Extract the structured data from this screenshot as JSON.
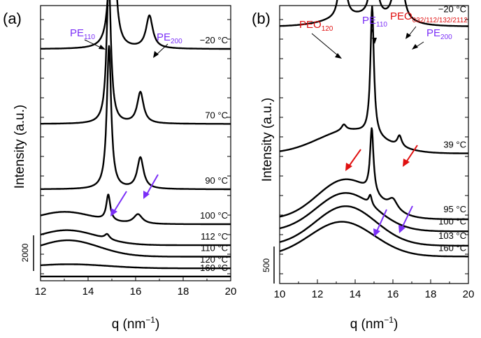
{
  "chart_data": [
    {
      "type": "line",
      "panel_label": "(a)",
      "xlabel_main": "q (nm",
      "xlabel_sup": "−1",
      "xlabel_end": ")",
      "ylabel": "Intensity (a.u.)",
      "xlim": [
        12,
        20
      ],
      "xticks": [
        12,
        14,
        16,
        18,
        20
      ],
      "scale_bar_label": "2000",
      "annotations": [
        {
          "base": "PE",
          "sub": "110",
          "color": "#7b2ff7"
        },
        {
          "base": "PE",
          "sub": "200",
          "color": "#7b2ff7"
        }
      ],
      "series": [
        {
          "name": "−20 °C",
          "offset": 830,
          "base": 0,
          "slope": 0,
          "peaks": [
            {
              "q": 15.02,
              "h": 690,
              "w": 0.12
            },
            {
              "q": 16.58,
              "h": 120,
              "w": 0.17
            }
          ]
        },
        {
          "name": "70 °C",
          "offset": 555,
          "base": 0,
          "slope": 0,
          "peaks": [
            {
              "q": 14.87,
              "h": 525,
              "w": 0.11
            },
            {
              "q": 16.2,
              "h": 115,
              "w": 0.16
            }
          ]
        },
        {
          "name": "90 °C",
          "offset": 315,
          "base": 0,
          "slope": 0,
          "peaks": [
            {
              "q": 14.88,
              "h": 525,
              "w": 0.11
            },
            {
              "q": 16.2,
              "h": 115,
              "w": 0.16
            }
          ]
        },
        {
          "name": "100 °C",
          "offset": 187,
          "base": 0,
          "slope": 0,
          "peaks": [
            {
              "q": 14.85,
              "h": 95,
              "w": 0.1
            },
            {
              "q": 16.1,
              "h": 35,
              "w": 0.22
            }
          ],
          "humps": [
            {
              "q": 13.0,
              "h": 45,
              "w": 1.2
            }
          ]
        },
        {
          "name": "112 °C",
          "offset": 110,
          "base": 0,
          "slope": 0,
          "peaks": [
            {
              "q": 14.8,
              "h": 18,
              "w": 0.12
            }
          ],
          "humps": [
            {
              "q": 13.1,
              "h": 55,
              "w": 1.3
            }
          ]
        },
        {
          "name": "110 °C",
          "offset": 68,
          "base": 0,
          "slope": 0,
          "humps": [
            {
              "q": 13.15,
              "h": 60,
              "w": 1.3
            }
          ]
        },
        {
          "name": "120 °C",
          "offset": 25,
          "base": 0,
          "slope": 0,
          "humps": [
            {
              "q": 13.2,
              "h": 15,
              "w": 1.6
            }
          ]
        },
        {
          "name": "160 °C",
          "offset": -5,
          "base": 0,
          "slope": 0
        }
      ],
      "purple_arrows": 2
    },
    {
      "type": "line",
      "panel_label": "(b)",
      "xlabel_main": "q (nm",
      "xlabel_sup": "−1",
      "xlabel_end": ")",
      "ylabel": "Intensity (a.u.)",
      "xlim": [
        10,
        20
      ],
      "xticks": [
        10,
        12,
        14,
        16,
        18,
        20
      ],
      "scale_bar_label": "500",
      "annotations": [
        {
          "base": "PEO",
          "sub": "120",
          "color": "#e01010"
        },
        {
          "base": "PE",
          "sub": "110",
          "color": "#7b2ff7"
        },
        {
          "base": "PEO",
          "sub": "032/112/132/2112",
          "color": "#e01010"
        },
        {
          "base": "PE",
          "sub": "200",
          "color": "#7b2ff7"
        }
      ],
      "series": [
        {
          "name": "−20 °C",
          "offset": 1000,
          "base": 0,
          "slope": 0,
          "peaks": [
            {
              "q": 13.32,
              "h": 560,
              "w": 0.11
            },
            {
              "q": 14.98,
              "h": 510,
              "w": 0.12
            },
            {
              "q": 16.3,
              "h": 530,
              "w": 0.16
            }
          ],
          "humps": [
            {
              "q": 14.3,
              "h": 40,
              "w": 1.6
            }
          ]
        },
        {
          "name": "39 °C",
          "offset": 470,
          "base": 0,
          "slope": 0,
          "peaks": [
            {
              "q": 14.9,
              "h": 540,
              "w": 0.11
            },
            {
              "q": 16.35,
              "h": 45,
              "w": 0.14
            },
            {
              "q": 13.4,
              "h": 25,
              "w": 0.15
            }
          ],
          "humps": [
            {
              "q": 13.7,
              "h": 95,
              "w": 1.7
            }
          ]
        },
        {
          "name": "95 °C",
          "offset": 195,
          "base": 0,
          "slope": 0,
          "peaks": [
            {
              "q": 14.88,
              "h": 270,
              "w": 0.11
            },
            {
              "q": 16.0,
              "h": 45,
              "w": 0.3
            }
          ],
          "humps": [
            {
              "q": 13.5,
              "h": 165,
              "w": 1.5
            }
          ]
        },
        {
          "name": "100 °C",
          "offset": 145,
          "base": 0,
          "slope": 0,
          "peaks": [
            {
              "q": 14.8,
              "h": 40,
              "w": 0.1
            }
          ],
          "humps": [
            {
              "q": 13.5,
              "h": 160,
              "w": 1.55
            }
          ]
        },
        {
          "name": "103 °C",
          "offset": 85,
          "base": 0,
          "slope": 0,
          "humps": [
            {
              "q": 13.5,
              "h": 165,
              "w": 1.6
            }
          ]
        },
        {
          "name": "160 °C",
          "offset": 40,
          "base": 0,
          "slope": 0,
          "humps": [
            {
              "q": 13.3,
              "h": 145,
              "w": 1.7
            }
          ]
        }
      ],
      "red_arrows": 2,
      "purple_arrows": 2
    }
  ]
}
